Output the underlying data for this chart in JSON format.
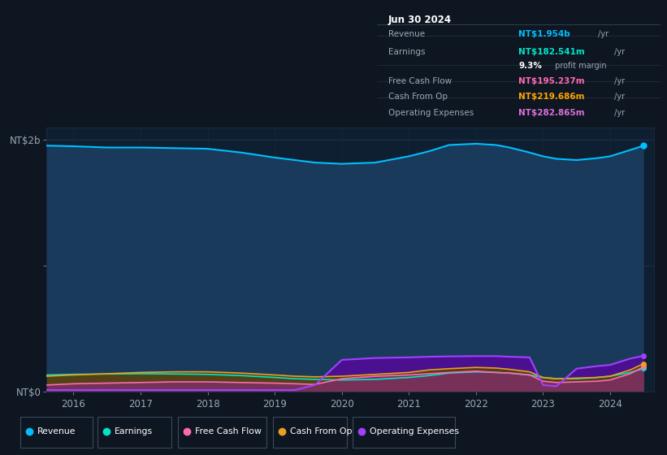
{
  "background_color": "#0e1621",
  "plot_bg_color": "#0d1f30",
  "fig_width": 8.21,
  "fig_height": 5.6,
  "dpi": 100,
  "info_box": {
    "date": "Jun 30 2024",
    "rows": [
      {
        "label": "Revenue",
        "value": "NT$1.954b",
        "value_color": "#00bfff",
        "suffix": " /yr"
      },
      {
        "label": "Earnings",
        "value": "NT$182.541m",
        "value_color": "#00e5c8",
        "suffix": " /yr"
      },
      {
        "label": "",
        "value": "9.3%",
        "value_color": "#ffffff",
        "suffix": " profit margin"
      },
      {
        "label": "Free Cash Flow",
        "value": "NT$195.237m",
        "value_color": "#ff69b4",
        "suffix": " /yr"
      },
      {
        "label": "Cash From Op",
        "value": "NT$219.686m",
        "value_color": "#ffa500",
        "suffix": " /yr"
      },
      {
        "label": "Operating Expenses",
        "value": "NT$282.865m",
        "value_color": "#da70d6",
        "suffix": " /yr"
      }
    ]
  },
  "x_years": [
    2015.6,
    2016.0,
    2016.5,
    2017.0,
    2017.5,
    2018.0,
    2018.5,
    2019.0,
    2019.3,
    2019.6,
    2020.0,
    2020.5,
    2021.0,
    2021.3,
    2021.6,
    2022.0,
    2022.3,
    2022.5,
    2022.8,
    2023.0,
    2023.2,
    2023.5,
    2023.8,
    2024.0,
    2024.3,
    2024.5
  ],
  "revenue": [
    1.955,
    1.95,
    1.94,
    1.94,
    1.935,
    1.93,
    1.9,
    1.86,
    1.84,
    1.82,
    1.81,
    1.82,
    1.87,
    1.91,
    1.96,
    1.97,
    1.96,
    1.94,
    1.9,
    1.87,
    1.85,
    1.84,
    1.855,
    1.87,
    1.92,
    1.954
  ],
  "earnings": [
    0.13,
    0.135,
    0.138,
    0.14,
    0.138,
    0.135,
    0.125,
    0.11,
    0.1,
    0.095,
    0.09,
    0.095,
    0.11,
    0.125,
    0.145,
    0.155,
    0.15,
    0.145,
    0.13,
    0.11,
    0.1,
    0.1,
    0.11,
    0.12,
    0.15,
    0.182
  ],
  "fcf": [
    0.05,
    0.06,
    0.065,
    0.07,
    0.075,
    0.075,
    0.07,
    0.065,
    0.06,
    0.055,
    0.1,
    0.12,
    0.13,
    0.14,
    0.15,
    0.16,
    0.15,
    0.145,
    0.13,
    0.08,
    0.07,
    0.075,
    0.08,
    0.09,
    0.14,
    0.195
  ],
  "cashfromop": [
    0.12,
    0.13,
    0.14,
    0.15,
    0.155,
    0.155,
    0.145,
    0.13,
    0.12,
    0.115,
    0.12,
    0.135,
    0.15,
    0.17,
    0.18,
    0.19,
    0.185,
    0.175,
    0.155,
    0.11,
    0.1,
    0.105,
    0.11,
    0.12,
    0.17,
    0.22
  ],
  "opex": [
    0.01,
    0.01,
    0.01,
    0.01,
    0.01,
    0.01,
    0.01,
    0.01,
    0.01,
    0.05,
    0.25,
    0.265,
    0.27,
    0.275,
    0.278,
    0.28,
    0.28,
    0.275,
    0.27,
    0.05,
    0.04,
    0.18,
    0.2,
    0.21,
    0.26,
    0.283
  ],
  "revenue_line_color": "#00bfff",
  "earnings_line_color": "#00e5c8",
  "fcf_line_color": "#ff69b4",
  "cashfromop_line_color": "#e8a020",
  "opex_line_color": "#a040ff",
  "revenue_fill": "#1a3a5c",
  "earnings_fill": "#1a5a50",
  "fcf_fill": "#7b3060",
  "cashfromop_fill": "#5a4010",
  "opex_fill": "#4a1090",
  "xlim": [
    2015.6,
    2024.65
  ],
  "ylim": [
    0.0,
    2.1
  ],
  "ytick_vals": [
    0.0,
    1.0,
    2.0
  ],
  "ytick_labels": [
    "NT$0",
    "",
    "NT$2b"
  ],
  "xtick_years": [
    2016,
    2017,
    2018,
    2019,
    2020,
    2021,
    2022,
    2023,
    2024
  ],
  "legend_items": [
    {
      "label": "Revenue",
      "color": "#00bfff"
    },
    {
      "label": "Earnings",
      "color": "#00e5c8"
    },
    {
      "label": "Free Cash Flow",
      "color": "#ff69b4"
    },
    {
      "label": "Cash From Op",
      "color": "#e8a020"
    },
    {
      "label": "Operating Expenses",
      "color": "#a040ff"
    }
  ],
  "text_color": "#9aa8b8",
  "grid_color": "#1e3048",
  "box_bg": "#080d14",
  "box_border": "#3a4a5a",
  "legend_border": "#3a4a5a"
}
